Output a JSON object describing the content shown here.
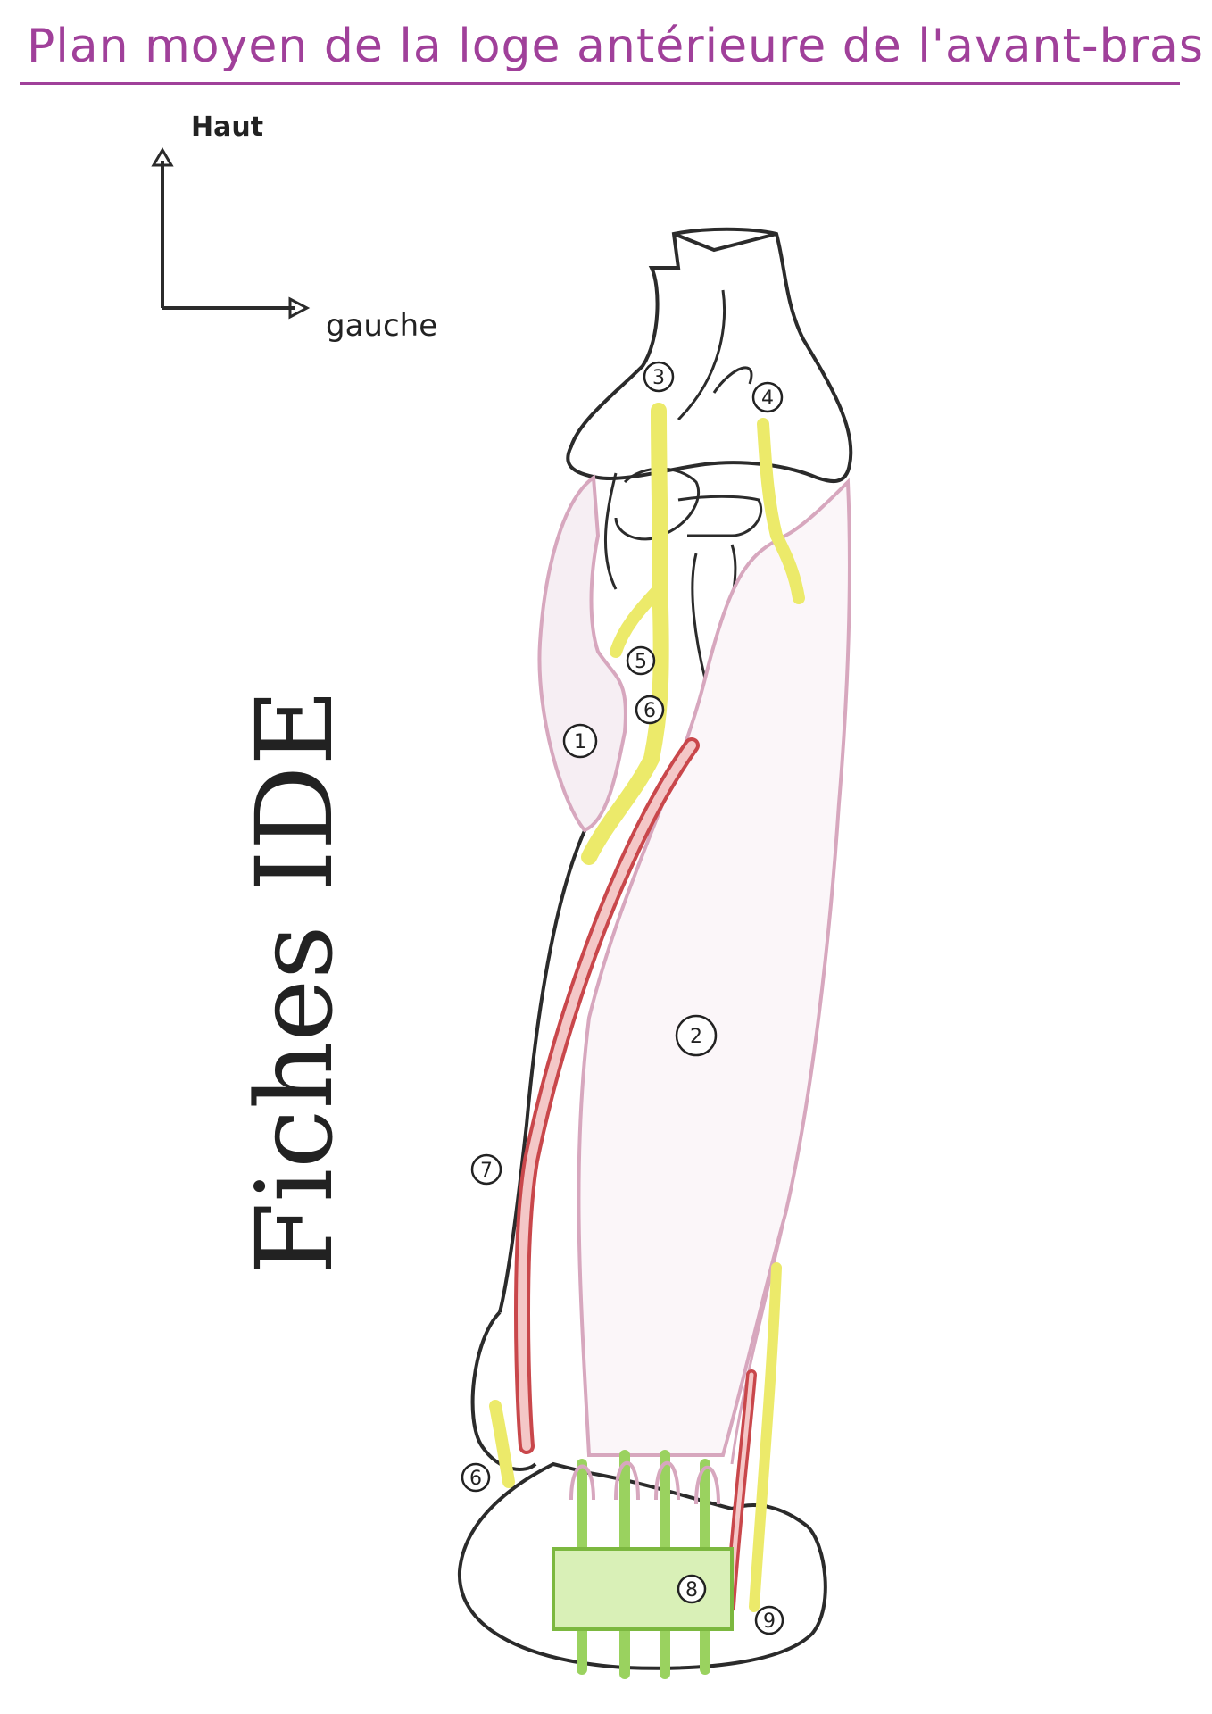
{
  "title": "Plan moyen de la loge antérieure de l'avant-bras",
  "orientation": {
    "up": "Haut",
    "left": "gauche"
  },
  "watermark": "Fiches IDE",
  "colors": {
    "title": "#a0409a",
    "muscle": "#d7a7be",
    "nerve": "#ecea6a",
    "artery": "#c9474b",
    "tendon": "#9ad25f",
    "outline": "#2b2b2b"
  },
  "labels": [
    "1",
    "2",
    "3",
    "4",
    "5",
    "6",
    "7",
    "8",
    "9"
  ]
}
